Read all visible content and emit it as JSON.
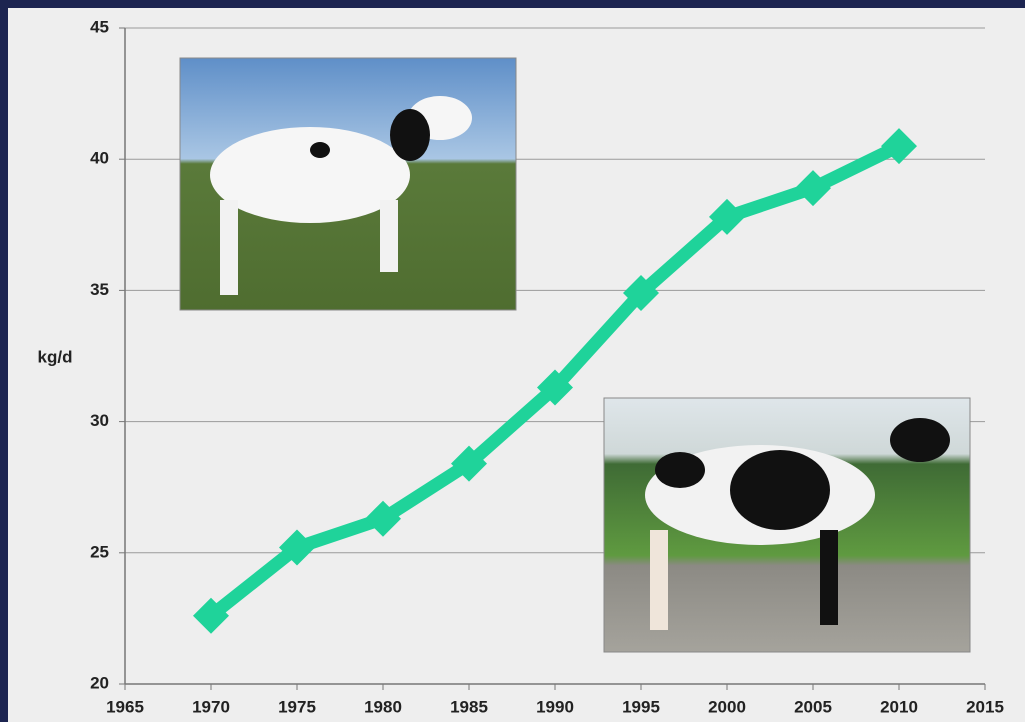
{
  "chart_data": {
    "type": "line",
    "y_label": "kg/d",
    "x": [
      1970,
      1975,
      1980,
      1985,
      1990,
      1995,
      2000,
      2005,
      2010
    ],
    "series": [
      {
        "color": "#1fd39a",
        "values": [
          22.6,
          25.2,
          26.3,
          28.4,
          31.3,
          34.9,
          37.8,
          38.9,
          40.5
        ]
      }
    ],
    "xlim": [
      1965,
      2015
    ],
    "xticks": [
      1965,
      1970,
      1975,
      1980,
      1985,
      1990,
      1995,
      2000,
      2005,
      2010,
      2015
    ],
    "ylim": [
      20,
      45
    ],
    "yticks": [
      20,
      25,
      30,
      35,
      40,
      45
    ],
    "grid": true
  }
}
